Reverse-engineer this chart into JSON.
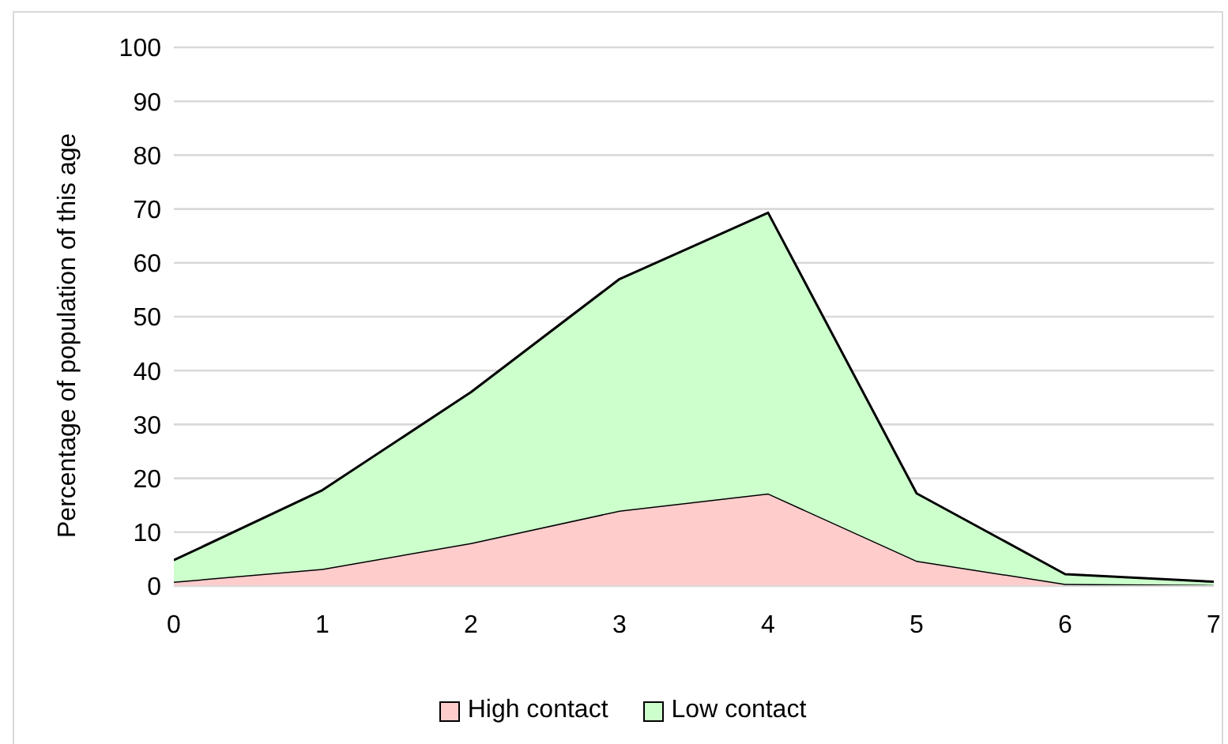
{
  "chart_data": {
    "type": "area",
    "stacked": true,
    "ylabel": "Percentage of population of this age",
    "x": [
      0,
      1,
      2,
      3,
      4,
      5,
      6,
      7
    ],
    "series": [
      {
        "name": "High contact",
        "color": "#ffcccc",
        "values": [
          0.8,
          3.2,
          8,
          14,
          17.2,
          4.7,
          0.4,
          0.2
        ]
      },
      {
        "name": "Low contact",
        "color": "#ccffcc",
        "values": [
          4.0,
          14.6,
          28,
          43,
          52.1,
          12.5,
          1.8,
          0.6
        ]
      }
    ],
    "xlim": [
      0,
      7
    ],
    "xticks": [
      0,
      1,
      2,
      3,
      4,
      5,
      6,
      7
    ],
    "ylim": [
      0,
      100
    ],
    "yticks": [
      0,
      10,
      20,
      30,
      40,
      50,
      60,
      70,
      80,
      90,
      100
    ],
    "grid": "y",
    "legend": "bottom"
  }
}
